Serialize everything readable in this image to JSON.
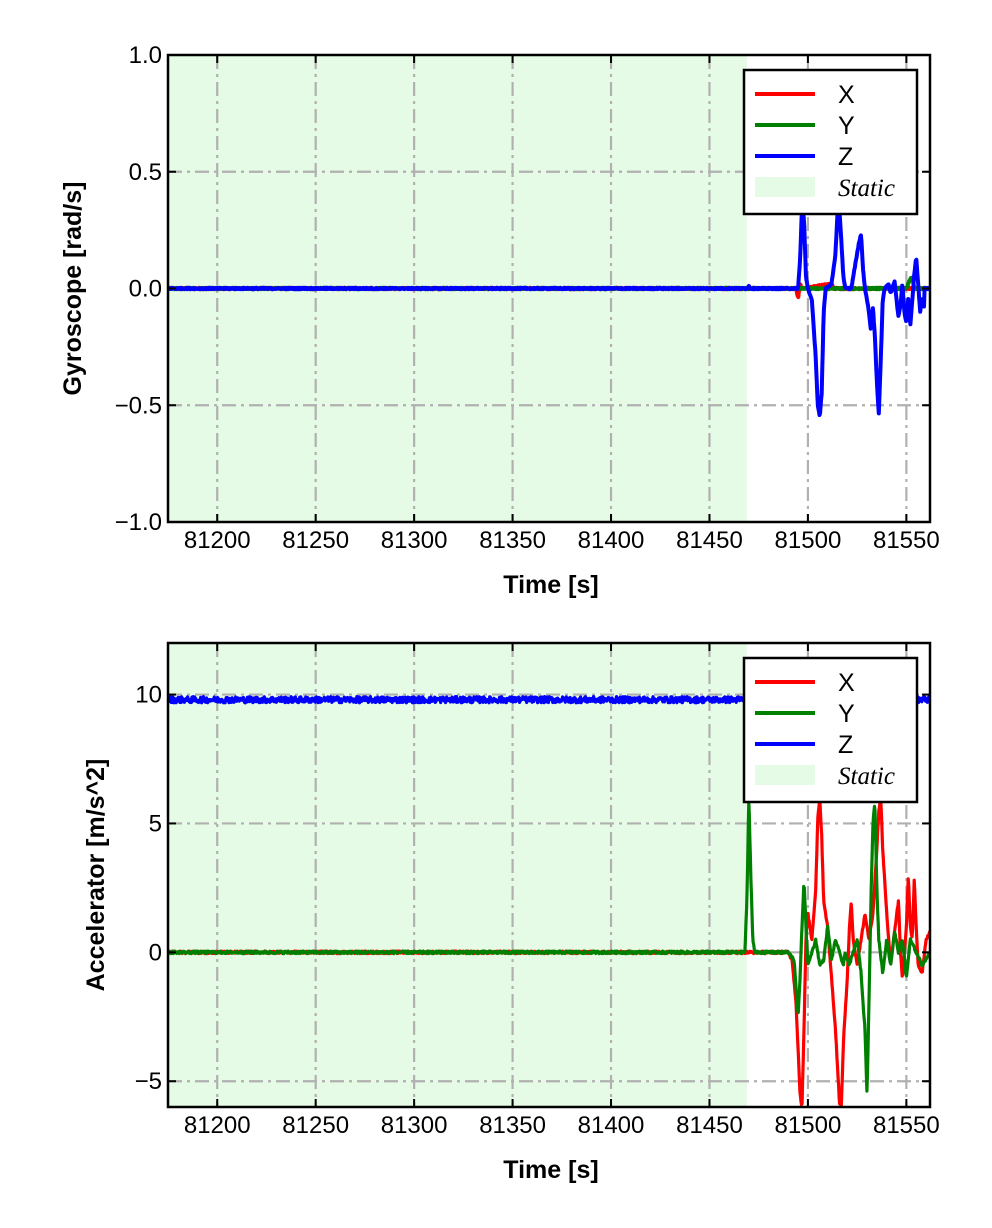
{
  "chart_data": [
    {
      "type": "line",
      "title": "",
      "xlabel": "Time [s]",
      "ylabel": "Gyroscope [rad/s]",
      "xlim": [
        81175,
        81562
      ],
      "ylim": [
        -1.0,
        1.0
      ],
      "x_ticks": [
        81200,
        81250,
        81300,
        81350,
        81400,
        81450,
        81500,
        81550
      ],
      "x_tick_labels": [
        "81200",
        "81250",
        "81300",
        "81350",
        "81400",
        "81450",
        "81500",
        "81550"
      ],
      "y_ticks": [
        -1.0,
        -0.5,
        0.0,
        0.5,
        1.0
      ],
      "y_tick_labels": [
        "−1.0",
        "−0.5",
        "0.0",
        "0.5",
        "1.0"
      ],
      "grid": true,
      "legend_position": "top-right",
      "static_region": [
        81175,
        81469
      ],
      "colors": {
        "X": "#ff0000",
        "Y": "#008000",
        "Z": "#0000ff",
        "static": "#e6fbe6",
        "grid": "#b0b0b0"
      },
      "series": [
        {
          "name": "X",
          "color": "#ff0000",
          "baseline": 0.0,
          "points": [
            [
              81175,
              0
            ],
            [
              81469,
              0
            ],
            [
              81494,
              0
            ],
            [
              81495,
              -0.04
            ],
            [
              81496,
              0.02
            ],
            [
              81497,
              0
            ],
            [
              81512,
              0.02
            ],
            [
              81513,
              0
            ],
            [
              81553,
              0
            ]
          ]
        },
        {
          "name": "Y",
          "color": "#008000",
          "baseline": 0.0,
          "points": [
            [
              81175,
              0
            ],
            [
              81469,
              0
            ],
            [
              81550,
              0
            ],
            [
              81552,
              0.04
            ],
            [
              81553,
              0.05
            ],
            [
              81554,
              0
            ],
            [
              81562,
              0
            ]
          ]
        },
        {
          "name": "Z",
          "color": "#0000ff",
          "baseline": 0.0,
          "points": [
            [
              81175,
              0
            ],
            [
              81469,
              0
            ],
            [
              81470,
              0.01
            ],
            [
              81471,
              0
            ],
            [
              81495,
              0
            ],
            [
              81496,
              0.12
            ],
            [
              81497,
              0.35
            ],
            [
              81498,
              0.3
            ],
            [
              81499,
              0.05
            ],
            [
              81500,
              0
            ],
            [
              81502,
              -0.05
            ],
            [
              81504,
              -0.3
            ],
            [
              81505,
              -0.5
            ],
            [
              81506,
              -0.55
            ],
            [
              81507,
              -0.45
            ],
            [
              81508,
              -0.1
            ],
            [
              81509,
              0
            ],
            [
              81512,
              0.02
            ],
            [
              81514,
              0.15
            ],
            [
              81515,
              0.32
            ],
            [
              81516,
              0.34
            ],
            [
              81517,
              0.2
            ],
            [
              81518,
              0.05
            ],
            [
              81519,
              0
            ],
            [
              81522,
              0
            ],
            [
              81524,
              0.1
            ],
            [
              81526,
              0.2
            ],
            [
              81527,
              0.23
            ],
            [
              81528,
              0.08
            ],
            [
              81529,
              0
            ],
            [
              81531,
              -0.1
            ],
            [
              81532,
              -0.18
            ],
            [
              81533,
              -0.08
            ],
            [
              81534,
              -0.2
            ],
            [
              81535,
              -0.4
            ],
            [
              81536,
              -0.54
            ],
            [
              81537,
              -0.3
            ],
            [
              81538,
              -0.05
            ],
            [
              81539,
              0
            ],
            [
              81541,
              0.02
            ],
            [
              81542,
              -0.02
            ],
            [
              81544,
              0.03
            ],
            [
              81545,
              -0.05
            ],
            [
              81546,
              -0.12
            ],
            [
              81547,
              -0.07
            ],
            [
              81548,
              0.02
            ],
            [
              81549,
              -0.1
            ],
            [
              81550,
              -0.15
            ],
            [
              81551,
              -0.04
            ],
            [
              81552,
              -0.16
            ],
            [
              81553,
              -0.05
            ],
            [
              81554,
              0.06
            ],
            [
              81555,
              0.13
            ],
            [
              81556,
              0.02
            ],
            [
              81557,
              -0.1
            ],
            [
              81558,
              -0.04
            ],
            [
              81559,
              -0.08
            ]
          ]
        }
      ],
      "legend": [
        {
          "label": "X",
          "color": "#ff0000",
          "kind": "line"
        },
        {
          "label": "Y",
          "color": "#008000",
          "kind": "line"
        },
        {
          "label": "Z",
          "color": "#0000ff",
          "kind": "line"
        },
        {
          "label": "Static",
          "color": "#e6fbe6",
          "kind": "patch"
        }
      ]
    },
    {
      "type": "line",
      "title": "",
      "xlabel": "Time [s]",
      "ylabel": "Accelerator [m/s^2]",
      "xlim": [
        81175,
        81562
      ],
      "ylim": [
        -6.0,
        12.0
      ],
      "x_ticks": [
        81200,
        81250,
        81300,
        81350,
        81400,
        81450,
        81500,
        81550
      ],
      "x_tick_labels": [
        "81200",
        "81250",
        "81300",
        "81350",
        "81400",
        "81450",
        "81500",
        "81550"
      ],
      "y_ticks": [
        -5,
        0,
        5,
        10
      ],
      "y_tick_labels": [
        "−5",
        "0",
        "5",
        "10"
      ],
      "grid": true,
      "legend_position": "top-right",
      "static_region": [
        81175,
        81469
      ],
      "colors": {
        "X": "#ff0000",
        "Y": "#008000",
        "Z": "#0000ff",
        "static": "#e6fbe6",
        "grid": "#b0b0b0"
      },
      "series": [
        {
          "name": "Z",
          "color": "#0000ff",
          "baseline": 9.8,
          "points": [
            [
              81175,
              9.8
            ],
            [
              81562,
              9.8
            ]
          ]
        },
        {
          "name": "X",
          "color": "#ff0000",
          "baseline": 0.0,
          "points": [
            [
              81175,
              0
            ],
            [
              81469,
              0
            ],
            [
              81490,
              0
            ],
            [
              81492,
              -0.3
            ],
            [
              81494,
              -2.0
            ],
            [
              81496,
              -5.5
            ],
            [
              81497,
              -6.0
            ],
            [
              81498,
              -3.0
            ],
            [
              81499,
              0.5
            ],
            [
              81500,
              1.5
            ],
            [
              81502,
              0.5
            ],
            [
              81504,
              2.5
            ],
            [
              81505,
              5.2
            ],
            [
              81506,
              6.0
            ],
            [
              81507,
              4.5
            ],
            [
              81508,
              2.0
            ],
            [
              81510,
              1.0
            ],
            [
              81512,
              -1.0
            ],
            [
              81514,
              -3.0
            ],
            [
              81516,
              -5.8
            ],
            [
              81517,
              -6.0
            ],
            [
              81518,
              -3.5
            ],
            [
              81520,
              -1.0
            ],
            [
              81521,
              0.8
            ],
            [
              81522,
              2.0
            ],
            [
              81523,
              0.5
            ],
            [
              81525,
              -0.5
            ],
            [
              81527,
              0.5
            ],
            [
              81529,
              1.5
            ],
            [
              81531,
              0.5
            ],
            [
              81533,
              1.5
            ],
            [
              81535,
              4.0
            ],
            [
              81536,
              5.5
            ],
            [
              81537,
              6.0
            ],
            [
              81538,
              4.0
            ],
            [
              81540,
              1.5
            ],
            [
              81542,
              -0.5
            ],
            [
              81544,
              0.8
            ],
            [
              81546,
              2.0
            ],
            [
              81547,
              0
            ],
            [
              81548,
              -1.0
            ],
            [
              81550,
              1.0
            ],
            [
              81551,
              3.0
            ],
            [
              81552,
              1.0
            ],
            [
              81553,
              0.5
            ],
            [
              81554,
              2.8
            ],
            [
              81555,
              1.0
            ],
            [
              81556,
              -0.5
            ],
            [
              81558,
              -0.8
            ],
            [
              81560,
              0.5
            ],
            [
              81562,
              0.8
            ]
          ]
        },
        {
          "name": "Y",
          "color": "#008000",
          "baseline": 0.0,
          "points": [
            [
              81175,
              0
            ],
            [
              81468,
              0
            ],
            [
              81469,
              2.0
            ],
            [
              81470,
              6.0
            ],
            [
              81471,
              3.0
            ],
            [
              81472,
              0.5
            ],
            [
              81473,
              0
            ],
            [
              81490,
              0
            ],
            [
              81493,
              -0.3
            ],
            [
              81495,
              -2.5
            ],
            [
              81496,
              -1.0
            ],
            [
              81497,
              1.0
            ],
            [
              81498,
              2.8
            ],
            [
              81499,
              1.0
            ],
            [
              81500,
              -0.5
            ],
            [
              81502,
              0
            ],
            [
              81504,
              0.5
            ],
            [
              81506,
              -0.5
            ],
            [
              81508,
              -0.3
            ],
            [
              81510,
              1.0
            ],
            [
              81512,
              -0.3
            ],
            [
              81514,
              0.5
            ],
            [
              81516,
              0
            ],
            [
              81518,
              -0.5
            ],
            [
              81519,
              0
            ],
            [
              81521,
              -0.5
            ],
            [
              81523,
              0
            ],
            [
              81525,
              0.5
            ],
            [
              81527,
              -0.8
            ],
            [
              81528,
              -2.0
            ],
            [
              81529,
              -3.0
            ],
            [
              81530,
              -5.5
            ],
            [
              81531,
              -2.0
            ],
            [
              81532,
              2.0
            ],
            [
              81533,
              5.0
            ],
            [
              81534,
              5.8
            ],
            [
              81535,
              2.5
            ],
            [
              81536,
              0.5
            ],
            [
              81538,
              -0.8
            ],
            [
              81540,
              0.5
            ],
            [
              81542,
              -0.5
            ],
            [
              81544,
              0.8
            ],
            [
              81546,
              0
            ],
            [
              81548,
              0.5
            ],
            [
              81550,
              -1.0
            ],
            [
              81552,
              0.5
            ],
            [
              81555,
              0
            ],
            [
              81558,
              -0.5
            ],
            [
              81562,
              0
            ]
          ]
        }
      ],
      "legend": [
        {
          "label": "X",
          "color": "#ff0000",
          "kind": "line"
        },
        {
          "label": "Y",
          "color": "#008000",
          "kind": "line"
        },
        {
          "label": "Z",
          "color": "#0000ff",
          "kind": "line"
        },
        {
          "label": "Static",
          "color": "#e6fbe6",
          "kind": "patch"
        }
      ]
    }
  ]
}
